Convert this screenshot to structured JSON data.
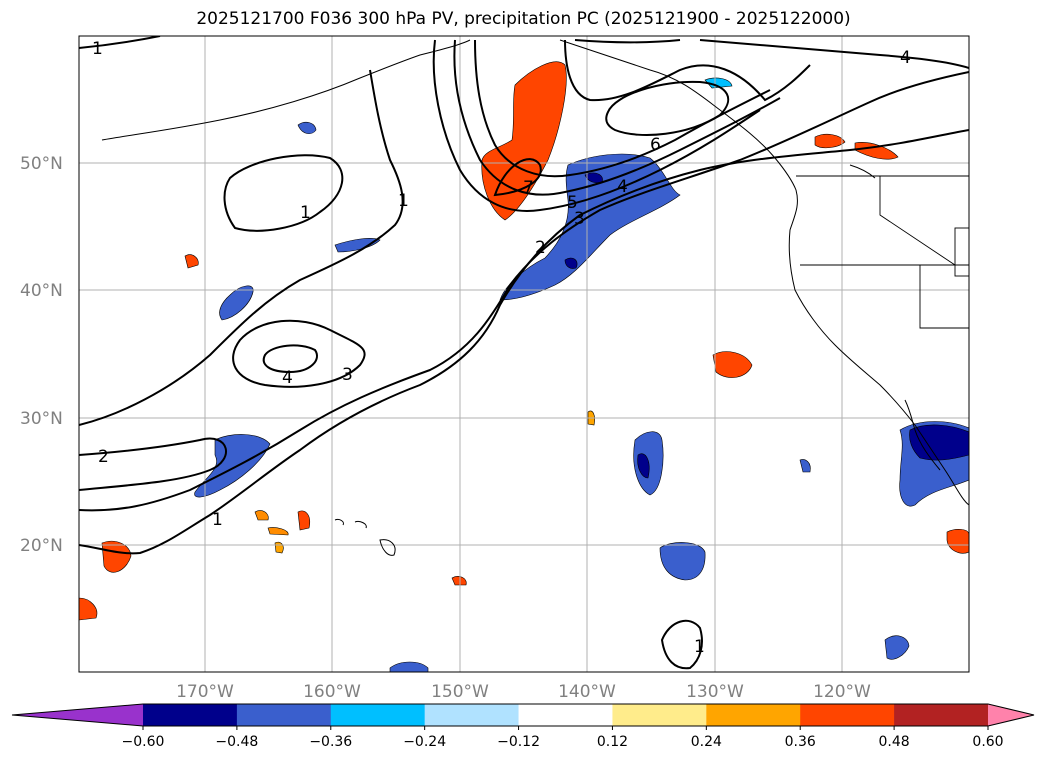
{
  "title": "2025121700 F036 300 hPa PV, precipitation PC (2025121900 - 2025122000)",
  "map": {
    "region": "North-east Pacific and western North America",
    "lon_range": [
      -180,
      -110
    ],
    "lat_range": [
      10,
      60
    ],
    "grid": true,
    "lat_labels": [
      "50°N",
      "40°N",
      "30°N",
      "20°N"
    ],
    "lon_labels": [
      "170°W",
      "160°W",
      "150°W",
      "140°W",
      "130°W",
      "120°W"
    ],
    "pv_contour_labels": [
      {
        "text": "1",
        "note": "top-left"
      },
      {
        "text": "1"
      },
      {
        "text": "1"
      },
      {
        "text": "4"
      },
      {
        "text": "3"
      },
      {
        "text": "2"
      },
      {
        "text": "1"
      },
      {
        "text": "7"
      },
      {
        "text": "5"
      },
      {
        "text": "3"
      },
      {
        "text": "4"
      },
      {
        "text": "2"
      },
      {
        "text": "6"
      },
      {
        "text": "4"
      },
      {
        "text": "1"
      }
    ]
  },
  "colorbar": {
    "ticks": [
      "−0.60",
      "−0.48",
      "−0.36",
      "−0.24",
      "−0.12",
      "0.12",
      "0.24",
      "0.36",
      "0.48",
      "0.60"
    ],
    "colors": [
      "#9932cc",
      "#00008b",
      "#3a5fcd",
      "#00bfff",
      "#b0e2ff",
      "#ffffff",
      "#ffec8b",
      "#ffa500",
      "#ff4500",
      "#b22222",
      "#ff82ab"
    ],
    "extend": "both"
  }
}
